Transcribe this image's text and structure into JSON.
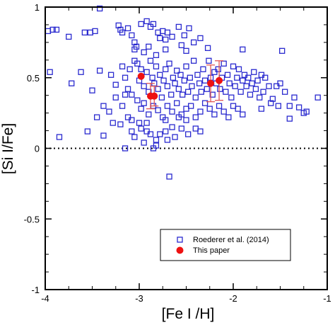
{
  "chart_data": {
    "type": "scatter",
    "xlabel": "[Fe I /H]",
    "ylabel": "[Si I/Fe]",
    "xlim": [
      -4,
      -1
    ],
    "ylim": [
      -1,
      1
    ],
    "x_ticks": [
      {
        "value": -4,
        "label": "-4"
      },
      {
        "value": -3,
        "label": "-3"
      },
      {
        "value": -2,
        "label": "-2"
      },
      {
        "value": -1,
        "label": "-1"
      }
    ],
    "y_ticks": [
      {
        "value": -1,
        "label": "-1"
      },
      {
        "value": -0.5,
        "label": "-0.5"
      },
      {
        "value": 0,
        "label": "0"
      },
      {
        "value": 0.5,
        "label": "0.5"
      },
      {
        "value": 1,
        "label": "1"
      }
    ],
    "reference_line": {
      "y": 0,
      "style": "dotted"
    },
    "legend": {
      "placement": "bottom-right"
    },
    "colors": {
      "roederer": "#2a2acf",
      "this_paper": "#ee1111",
      "error_bar": "#e05555"
    },
    "series": [
      {
        "name": "Roederer et al. (2014)",
        "marker": "open-square",
        "points": [
          [
            -3.97,
            0.83
          ],
          [
            -3.92,
            0.84
          ],
          [
            -3.88,
            0.84
          ],
          [
            -3.75,
            0.79
          ],
          [
            -3.58,
            0.82
          ],
          [
            -3.52,
            0.82
          ],
          [
            -3.47,
            0.83
          ],
          [
            -3.42,
            0.99
          ],
          [
            -3.22,
            0.87
          ],
          [
            -3.2,
            0.84
          ],
          [
            -3.18,
            0.82
          ],
          [
            -3.12,
            0.85
          ],
          [
            -3.08,
            0.8
          ],
          [
            -3.05,
            0.75
          ],
          [
            -3.03,
            0.72
          ],
          [
            -2.98,
            0.88
          ],
          [
            -2.92,
            0.9
          ],
          [
            -2.88,
            0.86
          ],
          [
            -2.85,
            0.88
          ],
          [
            -2.8,
            0.82
          ],
          [
            -2.78,
            0.78
          ],
          [
            -2.75,
            0.83
          ],
          [
            -2.72,
            0.77
          ],
          [
            -2.7,
            0.82
          ],
          [
            -2.65,
            0.79
          ],
          [
            -2.58,
            0.86
          ],
          [
            -2.52,
            0.8
          ],
          [
            -2.47,
            0.85
          ],
          [
            -2.42,
            0.75
          ],
          [
            -2.35,
            0.78
          ],
          [
            -2.27,
            0.71
          ],
          [
            -1.9,
            0.7
          ],
          [
            -1.48,
            0.69
          ],
          [
            -3.05,
            0.7
          ],
          [
            -2.95,
            0.68
          ],
          [
            -2.9,
            0.72
          ],
          [
            -2.82,
            0.66
          ],
          [
            -2.55,
            0.73
          ],
          [
            -2.5,
            0.69
          ],
          [
            -2.72,
            0.7
          ],
          [
            -3.95,
            0.54
          ],
          [
            -3.72,
            0.46
          ],
          [
            -3.62,
            0.54
          ],
          [
            -3.5,
            0.41
          ],
          [
            -3.42,
            0.55
          ],
          [
            -3.3,
            0.52
          ],
          [
            -3.25,
            0.45
          ],
          [
            -3.18,
            0.58
          ],
          [
            -3.15,
            0.5
          ],
          [
            -3.12,
            0.42
          ],
          [
            -3.1,
            0.56
          ],
          [
            -3.08,
            0.38
          ],
          [
            -3.05,
            0.62
          ],
          [
            -3.02,
            0.6
          ],
          [
            -3.0,
            0.48
          ],
          [
            -2.98,
            0.56
          ],
          [
            -2.95,
            0.44
          ],
          [
            -2.92,
            0.54
          ],
          [
            -2.9,
            0.4
          ],
          [
            -2.88,
            0.62
          ],
          [
            -2.86,
            0.5
          ],
          [
            -2.84,
            0.46
          ],
          [
            -2.82,
            0.58
          ],
          [
            -2.8,
            0.42
          ],
          [
            -2.78,
            0.52
          ],
          [
            -2.76,
            0.36
          ],
          [
            -2.74,
            0.48
          ],
          [
            -2.72,
            0.56
          ],
          [
            -2.7,
            0.44
          ],
          [
            -2.68,
            0.6
          ],
          [
            -2.66,
            0.38
          ],
          [
            -2.64,
            0.5
          ],
          [
            -2.62,
            0.46
          ],
          [
            -2.6,
            0.55
          ],
          [
            -2.58,
            0.42
          ],
          [
            -2.56,
            0.52
          ],
          [
            -2.54,
            0.38
          ],
          [
            -2.52,
            0.48
          ],
          [
            -2.5,
            0.58
          ],
          [
            -2.48,
            0.4
          ],
          [
            -2.46,
            0.5
          ],
          [
            -2.44,
            0.44
          ],
          [
            -2.42,
            0.62
          ],
          [
            -2.4,
            0.36
          ],
          [
            -2.38,
            0.52
          ],
          [
            -2.36,
            0.46
          ],
          [
            -2.34,
            0.4
          ],
          [
            -2.32,
            0.56
          ],
          [
            -2.3,
            0.48
          ],
          [
            -2.28,
            0.42
          ],
          [
            -2.26,
            0.62
          ],
          [
            -2.24,
            0.5
          ],
          [
            -2.22,
            0.38
          ],
          [
            -2.2,
            0.54
          ],
          [
            -2.18,
            0.46
          ],
          [
            -2.16,
            0.56
          ],
          [
            -2.14,
            0.42
          ],
          [
            -2.12,
            0.5
          ],
          [
            -2.1,
            0.6
          ],
          [
            -2.08,
            0.4
          ],
          [
            -2.06,
            0.52
          ],
          [
            -2.04,
            0.46
          ],
          [
            -2.02,
            0.36
          ],
          [
            -2.0,
            0.58
          ],
          [
            -1.98,
            0.44
          ],
          [
            -1.96,
            0.5
          ],
          [
            -1.94,
            0.56
          ],
          [
            -1.92,
            0.4
          ],
          [
            -1.9,
            0.48
          ],
          [
            -1.88,
            0.52
          ],
          [
            -1.86,
            0.44
          ],
          [
            -1.84,
            0.5
          ],
          [
            -1.82,
            0.38
          ],
          [
            -1.8,
            0.46
          ],
          [
            -1.78,
            0.54
          ],
          [
            -1.76,
            0.42
          ],
          [
            -1.74,
            0.48
          ],
          [
            -1.72,
            0.36
          ],
          [
            -1.7,
            0.52
          ],
          [
            -1.68,
            0.4
          ],
          [
            -1.66,
            0.5
          ],
          [
            -1.62,
            0.44
          ],
          [
            -1.58,
            0.35
          ],
          [
            -1.54,
            0.44
          ],
          [
            -1.5,
            0.46
          ],
          [
            -1.45,
            0.4
          ],
          [
            -1.4,
            0.3
          ],
          [
            -1.35,
            0.36
          ],
          [
            -1.3,
            0.29
          ],
          [
            -1.25,
            0.25
          ],
          [
            -1.22,
            0.26
          ],
          [
            -1.1,
            0.36
          ],
          [
            -1.4,
            0.21
          ],
          [
            -1.52,
            0.3
          ],
          [
            -1.6,
            0.32
          ],
          [
            -1.7,
            0.28
          ],
          [
            -3.32,
            0.26
          ],
          [
            -3.18,
            0.3
          ],
          [
            -3.12,
            0.22
          ],
          [
            -3.08,
            0.2
          ],
          [
            -3.02,
            0.34
          ],
          [
            -2.98,
            0.28
          ],
          [
            -2.95,
            0.32
          ],
          [
            -2.9,
            0.24
          ],
          [
            -2.85,
            0.3
          ],
          [
            -2.8,
            0.27
          ],
          [
            -2.75,
            0.22
          ],
          [
            -2.7,
            0.3
          ],
          [
            -2.65,
            0.26
          ],
          [
            -2.6,
            0.32
          ],
          [
            -2.55,
            0.24
          ],
          [
            -2.5,
            0.28
          ],
          [
            -2.45,
            0.3
          ],
          [
            -2.4,
            0.22
          ],
          [
            -2.35,
            0.26
          ],
          [
            -2.3,
            0.32
          ],
          [
            -2.25,
            0.28
          ],
          [
            -2.2,
            0.24
          ],
          [
            -2.15,
            0.3
          ],
          [
            -2.1,
            0.26
          ],
          [
            -2.05,
            0.22
          ],
          [
            -2.0,
            0.3
          ],
          [
            -1.95,
            0.28
          ],
          [
            -1.9,
            0.24
          ],
          [
            -3.45,
            0.22
          ],
          [
            -3.38,
            0.3
          ],
          [
            -3.25,
            0.36
          ],
          [
            -3.15,
            0.38
          ],
          [
            -3.85,
            0.08
          ],
          [
            -3.55,
            0.12
          ],
          [
            -3.38,
            0.09
          ],
          [
            -3.2,
            0.17
          ],
          [
            -3.08,
            0.12
          ],
          [
            -3.05,
            0.08
          ],
          [
            -2.98,
            0.14
          ],
          [
            -2.92,
            0.18
          ],
          [
            -2.88,
            0.1
          ],
          [
            -2.82,
            0.06
          ],
          [
            -2.78,
            0.1
          ],
          [
            -2.72,
            0.12
          ],
          [
            -2.65,
            0.15
          ],
          [
            -2.62,
            0.08
          ],
          [
            -2.55,
            0.14
          ],
          [
            -2.48,
            0.1
          ],
          [
            -2.4,
            0.14
          ],
          [
            -3.15,
            0.0
          ],
          [
            -2.95,
            0.04
          ],
          [
            -2.85,
            0.0
          ],
          [
            -2.82,
            0.02
          ],
          [
            -2.7,
            0.06
          ],
          [
            -2.68,
            -0.2
          ],
          [
            -3.0,
            0.18
          ],
          [
            -2.92,
            0.12
          ],
          [
            -2.35,
            0.12
          ],
          [
            -3.28,
            0.18
          ],
          [
            -2.5,
            0.2
          ],
          [
            -2.58,
            0.22
          ],
          [
            -2.72,
            0.2
          ]
        ]
      },
      {
        "name": "This paper",
        "marker": "filled-circle",
        "points": [
          {
            "x": -2.98,
            "y": 0.51,
            "err": 0.0
          },
          {
            "x": -2.88,
            "y": 0.37,
            "err": 0.09
          },
          {
            "x": -2.84,
            "y": 0.37,
            "err": 0.07
          },
          {
            "x": -2.24,
            "y": 0.46,
            "err": 0.13
          },
          {
            "x": -2.15,
            "y": 0.48,
            "err": 0.14
          }
        ]
      }
    ]
  }
}
